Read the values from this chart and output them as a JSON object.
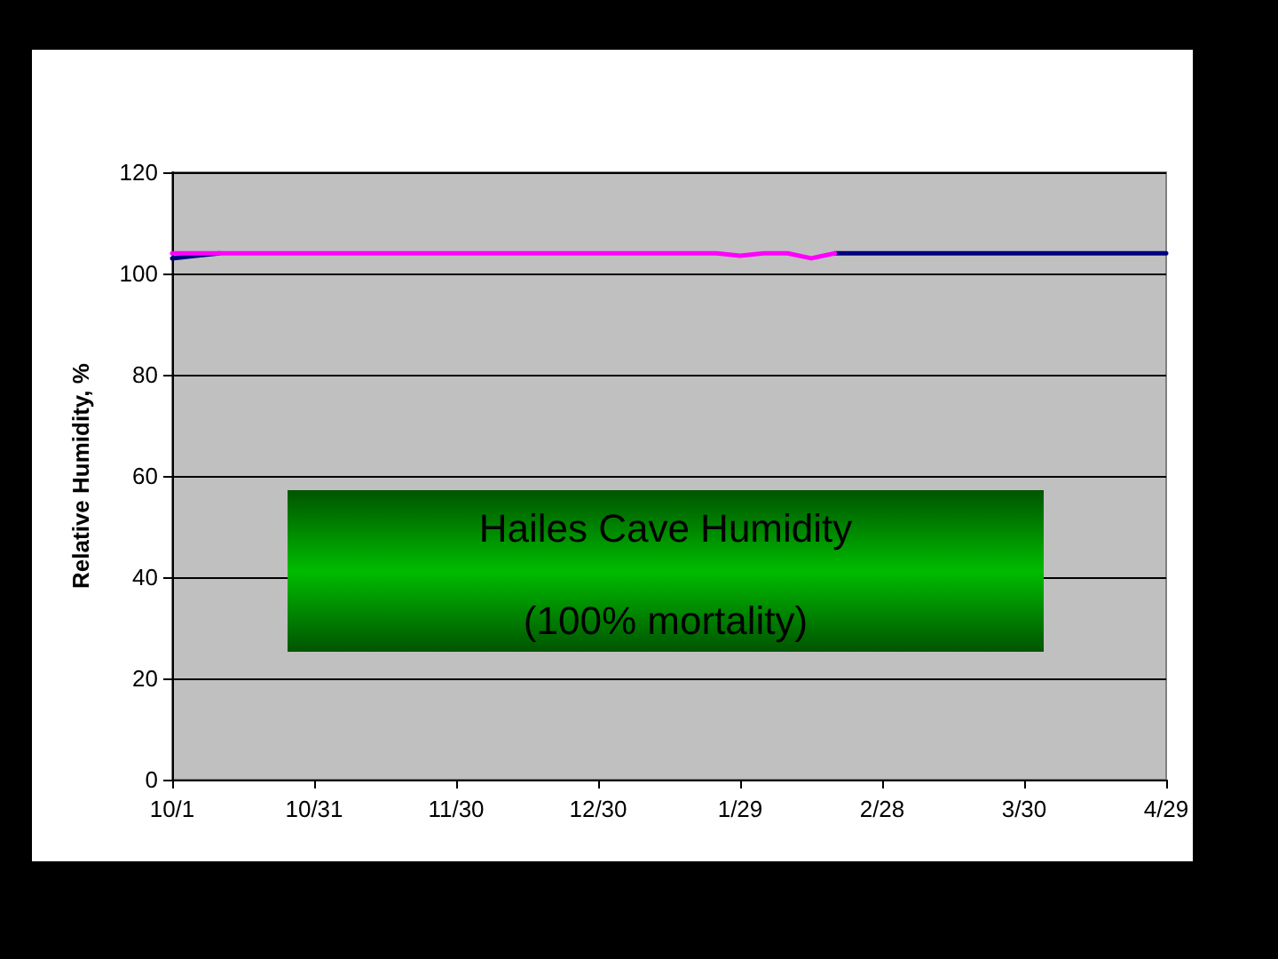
{
  "chart_data": {
    "type": "line",
    "ylabel": "Relative Humidity, %",
    "annotations": [
      "Hailes Cave Humidity",
      "(100% mortality)"
    ],
    "categories": [
      "10/1",
      null,
      null,
      null,
      null,
      null,
      "10/31",
      null,
      null,
      null,
      null,
      null,
      "11/30",
      null,
      null,
      null,
      null,
      null,
      "12/30",
      null,
      null,
      null,
      null,
      null,
      "1/29",
      null,
      null,
      null,
      null,
      null,
      "2/28",
      null,
      null,
      null,
      null,
      null,
      "3/30",
      null,
      null,
      null,
      null,
      null,
      "4/29"
    ],
    "series": [
      {
        "color": "#ff00ff",
        "values": [
          104,
          104,
          104,
          104,
          104,
          104,
          104,
          104,
          104,
          104,
          104,
          104,
          104,
          104,
          104,
          104,
          104,
          104,
          104,
          104,
          104,
          104,
          104,
          104,
          103.5,
          104,
          104,
          103,
          104,
          null,
          null,
          null,
          null,
          null,
          null,
          null,
          null,
          null,
          null,
          null,
          null,
          null,
          null
        ]
      },
      {
        "color": "#000080",
        "values": [
          103,
          103.5,
          104,
          null,
          null,
          null,
          null,
          null,
          null,
          null,
          null,
          null,
          null,
          null,
          null,
          null,
          null,
          null,
          null,
          null,
          null,
          null,
          null,
          null,
          null,
          null,
          null,
          null,
          104,
          104,
          104,
          104,
          104,
          104,
          104,
          104,
          104,
          104,
          104,
          104,
          104,
          104,
          104
        ]
      }
    ],
    "ylim": [
      0,
      120
    ],
    "yticks": [
      0,
      20,
      40,
      60,
      80,
      100,
      120
    ],
    "grid": "y",
    "marker": "none",
    "line_style": "solid"
  }
}
